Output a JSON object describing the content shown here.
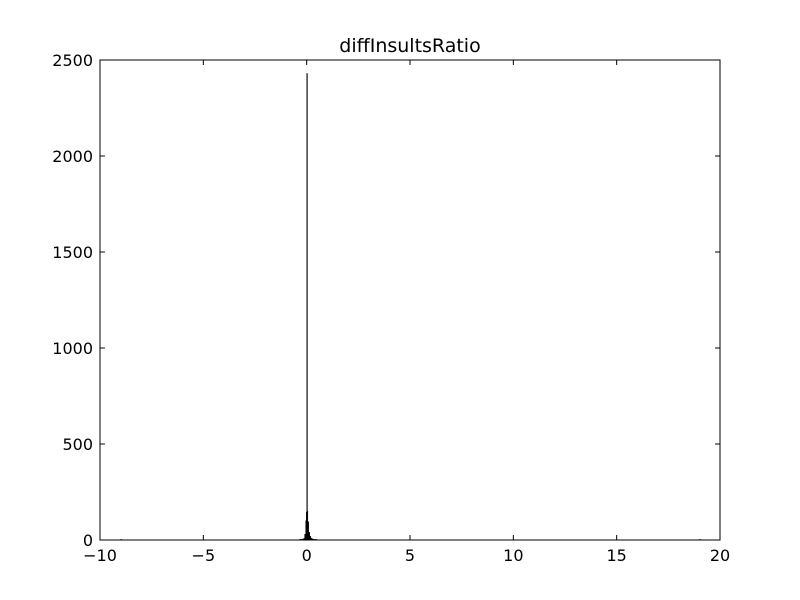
{
  "chart_data": {
    "type": "histogram",
    "title": "diffInsultsRatio",
    "xlabel": "",
    "ylabel": "",
    "xlim": [
      -10,
      20
    ],
    "ylim": [
      0,
      2500
    ],
    "x_ticks": [
      "−10",
      "−5",
      "0",
      "5",
      "10",
      "15",
      "20"
    ],
    "x_tick_values": [
      -10,
      -5,
      0,
      5,
      10,
      15,
      20
    ],
    "y_ticks": [
      "0",
      "500",
      "1000",
      "1500",
      "2000",
      "2500"
    ],
    "y_tick_values": [
      0,
      500,
      1000,
      1500,
      2000,
      2500
    ],
    "bar_color": "#000000",
    "bins": [
      {
        "x0": -9.0,
        "x1": -8.95,
        "count": 1
      },
      {
        "x0": -0.35,
        "x1": -0.3,
        "count": 1
      },
      {
        "x0": -0.3,
        "x1": -0.25,
        "count": 2
      },
      {
        "x0": -0.25,
        "x1": -0.2,
        "count": 3
      },
      {
        "x0": -0.2,
        "x1": -0.15,
        "count": 5
      },
      {
        "x0": -0.15,
        "x1": -0.1,
        "count": 8
      },
      {
        "x0": -0.1,
        "x1": -0.05,
        "count": 30
      },
      {
        "x0": -0.05,
        "x1": -0.02,
        "count": 100
      },
      {
        "x0": -0.02,
        "x1": 0.0,
        "count": 145
      },
      {
        "x0": 0.0,
        "x1": 0.02,
        "count": 2430
      },
      {
        "x0": 0.02,
        "x1": 0.05,
        "count": 150
      },
      {
        "x0": 0.05,
        "x1": 0.1,
        "count": 95
      },
      {
        "x0": 0.1,
        "x1": 0.15,
        "count": 40
      },
      {
        "x0": 0.15,
        "x1": 0.2,
        "count": 20
      },
      {
        "x0": 0.2,
        "x1": 0.25,
        "count": 10
      },
      {
        "x0": 0.25,
        "x1": 0.3,
        "count": 6
      },
      {
        "x0": 0.3,
        "x1": 0.35,
        "count": 4
      },
      {
        "x0": 0.35,
        "x1": 0.4,
        "count": 2
      },
      {
        "x0": 0.4,
        "x1": 0.5,
        "count": 1
      },
      {
        "x0": 19.0,
        "x1": 19.05,
        "count": 1
      }
    ]
  }
}
